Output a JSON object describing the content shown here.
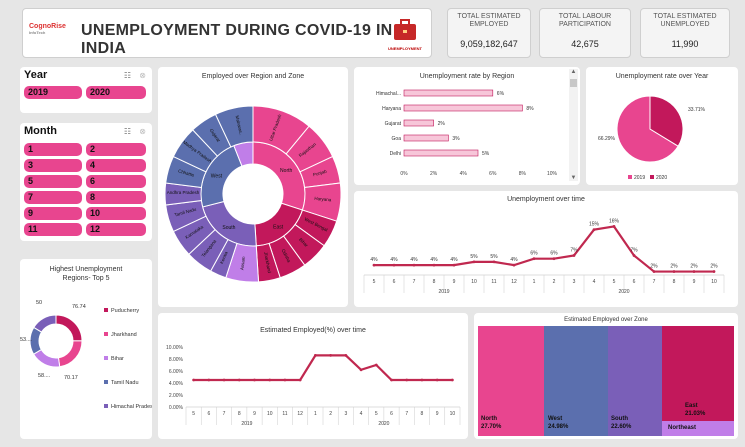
{
  "header": {
    "logo_text_1": "CognoRise",
    "logo_text_2": "InfoTech",
    "title": "UNEMPLOYMENT DURING COVID-19 IN INDIA",
    "badge_text": "UNEMPLOYMENT"
  },
  "kpis": [
    {
      "label": "TOTAL ESTIMATED EMPLOYED",
      "value": "9,059,182,647"
    },
    {
      "label": "TOTAL LABOUR PARTICIPATION",
      "value": "42,675"
    },
    {
      "label": "TOTAL ESTIMATED UNEMPLOYED",
      "value": "11,990"
    }
  ],
  "year_slicer": {
    "title": "Year",
    "items": [
      "2019",
      "2020"
    ]
  },
  "month_slicer": {
    "title": "Month",
    "items": [
      "1",
      "2",
      "3",
      "4",
      "5",
      "6",
      "7",
      "8",
      "9",
      "10",
      "11",
      "12"
    ]
  },
  "colors": {
    "accent": "#e8458f",
    "dark_red": "#c2185b",
    "blue": "#5b6fae",
    "purple": "#7a5fb8",
    "light_purple": "#c07ee8",
    "line": "#c0284f"
  },
  "sunburst": {
    "title": "Employed over Region and Zone",
    "zones": [
      "North",
      "East",
      "South",
      "West",
      "Northeast"
    ],
    "regions": [
      "Uttar Pradesh",
      "Rajasthan",
      "Punjab",
      "Haryana",
      "West Bengal",
      "Bihar",
      "Odisha",
      "Jharkhand",
      "Assam",
      "Kerala",
      "Telangana",
      "Karnataka",
      "Tamil Nadu",
      "Andhra Pradesh",
      "Chhattis",
      "Madhya Pradesh",
      "Gujarat",
      "Maharas.."
    ]
  },
  "region_bar": {
    "title": "Unemployment rate by Region",
    "categories": [
      "Himachal...",
      "Haryana",
      "Gujarat",
      "Goa",
      "Delhi"
    ],
    "values": [
      6,
      8,
      2,
      3,
      5
    ],
    "labels": [
      "6%",
      "8%",
      "2%",
      "3%",
      "5%"
    ],
    "ticks": [
      "0%",
      "2%",
      "4%",
      "6%",
      "8%",
      "10%"
    ],
    "xlim": [
      0,
      10
    ]
  },
  "year_pie": {
    "title": "Unemployment rate over Year",
    "values": [
      66.29,
      33.71
    ],
    "labels": [
      "66.29%",
      "33.71%"
    ],
    "legend": [
      "2019",
      "2020"
    ]
  },
  "unemp_time": {
    "title": "Unemployment over time",
    "x": [
      "5",
      "6",
      "7",
      "8",
      "9",
      "10",
      "11",
      "12",
      "1",
      "2",
      "3",
      "4",
      "5",
      "6",
      "7",
      "8",
      "9",
      "10"
    ],
    "values": [
      4,
      4,
      4,
      4,
      4,
      5,
      5,
      4,
      6,
      6,
      7,
      15,
      16,
      7,
      2,
      2,
      2,
      2
    ],
    "labels": [
      "4%",
      "4%",
      "4%",
      "4%",
      "4%",
      "5%",
      "5%",
      "4%",
      "6%",
      "6%",
      "7%",
      "15%",
      "16%",
      "7%",
      "2%",
      "2%",
      "2%",
      "2%"
    ],
    "groups": [
      {
        "label": "2019",
        "count": 8
      },
      {
        "label": "2020",
        "count": 10
      }
    ],
    "ylim": [
      0,
      18
    ]
  },
  "top5": {
    "title_line1": "Highest Unemployment",
    "title_line2": "Regions- Top 5",
    "values": [
      76.74,
      70.17,
      58,
      53,
      50
    ],
    "value_labels": [
      "76.74",
      "70.17",
      "58....",
      "53....",
      "50"
    ],
    "legend": [
      "Puducherry",
      "Jharkhand",
      "Bihar",
      "Tamil Nadu",
      "Himachal Pradesh"
    ],
    "colors": [
      "#c2185b",
      "#e8458f",
      "#c07ee8",
      "#5b6fae",
      "#7a5fb8"
    ]
  },
  "emp_time": {
    "title": "Estimated Employed(%) over time",
    "x": [
      "5",
      "6",
      "7",
      "8",
      "9",
      "10",
      "11",
      "12",
      "1",
      "2",
      "3",
      "4",
      "5",
      "6",
      "7",
      "8",
      "9",
      "10"
    ],
    "values": [
      4.5,
      4.5,
      4.5,
      4.5,
      4.5,
      4.5,
      4.5,
      4.5,
      8.6,
      8.6,
      8.6,
      6.2,
      7.0,
      4.5,
      4.5,
      4.5,
      4.5,
      4.5
    ],
    "yticks": [
      "10.00%",
      "8.00%",
      "6.00%",
      "4.00%",
      "2.00%",
      "0.00%"
    ],
    "groups": [
      {
        "label": "2019",
        "count": 8
      },
      {
        "label": "2020",
        "count": 10
      }
    ],
    "ylim": [
      0,
      10
    ]
  },
  "treemap": {
    "title": "Estimated Employed over Zone",
    "cells": [
      {
        "name": "North",
        "value": "27.70%"
      },
      {
        "name": "West",
        "value": "24.98%"
      },
      {
        "name": "South",
        "value": "22.60%"
      },
      {
        "name": "East",
        "value": "21.03%"
      },
      {
        "name": "Northeast",
        "value": ""
      }
    ]
  }
}
